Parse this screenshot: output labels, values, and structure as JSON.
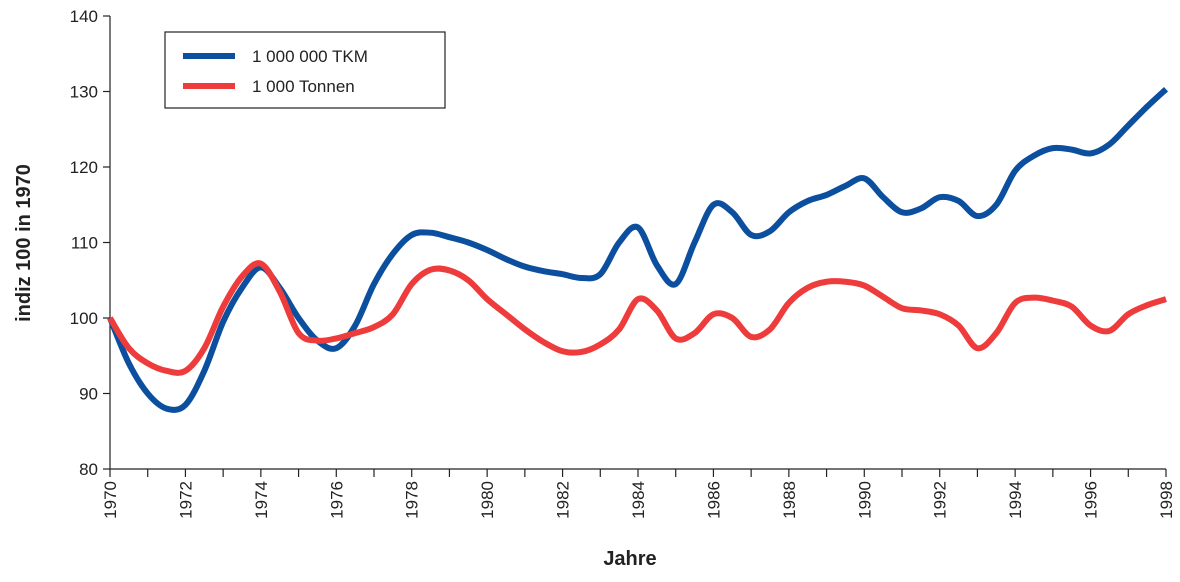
{
  "chart_data": {
    "type": "line",
    "x_label": "Jahre",
    "y_label": "indiz 100 in 1970",
    "x": [
      1970,
      1970.5,
      1971,
      1971.5,
      1972,
      1972.5,
      1973,
      1973.5,
      1974,
      1974.5,
      1975,
      1975.5,
      1976,
      1976.5,
      1977,
      1977.5,
      1978,
      1978.5,
      1979,
      1979.5,
      1980,
      1980.5,
      1981,
      1981.5,
      1982,
      1982.5,
      1983,
      1983.5,
      1984,
      1984.5,
      1985,
      1985.5,
      1986,
      1986.5,
      1987,
      1987.5,
      1988,
      1988.5,
      1989,
      1989.5,
      1990,
      1990.5,
      1991,
      1991.5,
      1992,
      1992.5,
      1993,
      1993.5,
      1994,
      1994.5,
      1995,
      1995.5,
      1996,
      1996.5,
      1997,
      1997.5,
      1998
    ],
    "series": [
      {
        "name": "1 000 000 TKM",
        "color": "#0b4f9e",
        "values": [
          100,
          94,
          90,
          88,
          88.5,
          93,
          99.5,
          104,
          106.7,
          104,
          100,
          97,
          96,
          99,
          104.5,
          108.5,
          111,
          111.3,
          110.7,
          110,
          109,
          107.8,
          106.8,
          106.2,
          105.8,
          105.3,
          105.8,
          110,
          112,
          107,
          104.5,
          110,
          115,
          114,
          111,
          111.5,
          114,
          115.5,
          116.3,
          117.5,
          118.5,
          116,
          114,
          114.5,
          116,
          115.5,
          113.5,
          115,
          119.5,
          121.5,
          122.5,
          122.3,
          121.8,
          123,
          125.5,
          128,
          130.3
        ]
      },
      {
        "name": "1 000 Tonnen",
        "color": "#ee3b3b",
        "values": [
          100,
          96,
          94,
          93,
          93,
          96,
          101.5,
          105.5,
          107.2,
          103.5,
          98,
          97,
          97.3,
          98,
          98.8,
          100.5,
          104.5,
          106.4,
          106.3,
          105,
          102.5,
          100.5,
          98.5,
          96.8,
          95.6,
          95.5,
          96.5,
          98.5,
          102.5,
          101,
          97.3,
          98,
          100.5,
          100,
          97.5,
          98.5,
          102,
          104,
          104.8,
          104.8,
          104.3,
          102.8,
          101.3,
          101,
          100.5,
          99,
          96,
          98,
          102,
          102.7,
          102.3,
          101.5,
          99,
          98.3,
          100.5,
          101.7,
          102.5
        ]
      }
    ],
    "xlim": [
      1970,
      1998
    ],
    "xticks": [
      1970,
      1972,
      1974,
      1976,
      1978,
      1980,
      1982,
      1984,
      1986,
      1988,
      1990,
      1992,
      1994,
      1996,
      1998
    ],
    "xticks_minor": [
      1971,
      1973,
      1975,
      1977,
      1979,
      1981,
      1983,
      1985,
      1987,
      1989,
      1991,
      1993,
      1995,
      1997
    ],
    "ylim": [
      80,
      140
    ],
    "yticks": [
      80,
      90,
      100,
      110,
      120,
      130,
      140
    ],
    "grid": false,
    "legend": "upper left"
  }
}
